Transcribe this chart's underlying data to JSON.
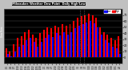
{
  "title": "Milwaukee Weather Dew Point",
  "subtitle": "Daily High/Low",
  "legend_high": "High",
  "legend_low": "Low",
  "ylim": [
    -10,
    80
  ],
  "ytick_vals": [
    0,
    10,
    20,
    30,
    40,
    50,
    60,
    70
  ],
  "color_high": "#ff0000",
  "color_low": "#0000ff",
  "bg_plot": "#000000",
  "bg_fig": "#c0c0c0",
  "highs": [
    15,
    10,
    22,
    32,
    35,
    42,
    45,
    38,
    32,
    40,
    45,
    50,
    48,
    52,
    50,
    55,
    52,
    55,
    60,
    65,
    68,
    70,
    72,
    70,
    65,
    50,
    42,
    38,
    32,
    28,
    35
  ],
  "lows": [
    5,
    2,
    10,
    18,
    20,
    28,
    32,
    25,
    18,
    26,
    32,
    38,
    34,
    40,
    36,
    42,
    38,
    42,
    48,
    52,
    55,
    58,
    60,
    56,
    50,
    38,
    28,
    24,
    18,
    15,
    5
  ],
  "xlabels": [
    "1/1",
    "1/4",
    "1/7",
    "1/10",
    "1/13",
    "1/16",
    "1/19",
    "1/22",
    "1/25",
    "1/28",
    "2/1",
    "2/4",
    "2/7",
    "2/10",
    "2/13",
    "2/16",
    "2/19",
    "2/22",
    "2/25",
    "3/1",
    "3/4",
    "3/7",
    "3/10",
    "3/13",
    "3/16",
    "3/19",
    "3/22",
    "3/25",
    "3/28",
    "3/31",
    "4/3"
  ],
  "dotted_vlines": [
    19.5,
    20.5
  ],
  "bar_width": 0.42,
  "n_bars": 31
}
